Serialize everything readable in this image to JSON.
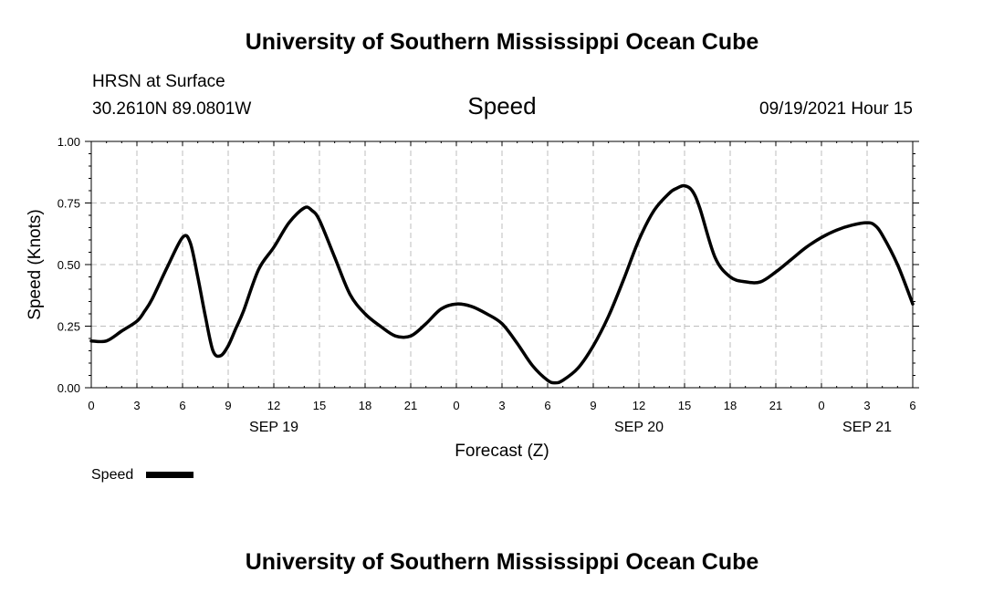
{
  "header": {
    "title": "University of Southern Mississippi Ocean Cube",
    "station": "HRSN at Surface",
    "coords": "30.2610N  89.0801W",
    "variable": "Speed",
    "datetime": "09/19/2021 Hour 15"
  },
  "footer": {
    "title": "University of Southern Mississippi Ocean Cube"
  },
  "legend": {
    "label": "Speed"
  },
  "chart_data": {
    "type": "line",
    "title": "Speed",
    "xlabel": "Forecast (Z)",
    "ylabel": "Speed (Knots)",
    "xlim": [
      0,
      54
    ],
    "ylim": [
      0,
      1
    ],
    "grid": true,
    "legend_position": "bottom-left",
    "x_ticks": [
      0,
      3,
      6,
      9,
      12,
      15,
      18,
      21,
      24,
      27,
      30,
      33,
      36,
      39,
      42,
      45,
      48,
      51,
      54
    ],
    "x_tick_labels": [
      "0",
      "3",
      "6",
      "9",
      "12",
      "15",
      "18",
      "21",
      "0",
      "3",
      "6",
      "9",
      "12",
      "15",
      "18",
      "21",
      "0",
      "3",
      "6"
    ],
    "y_ticks": [
      0,
      0.25,
      0.5,
      0.75,
      1.0
    ],
    "y_tick_labels": [
      "0.00",
      "0.25",
      "0.50",
      "0.75",
      "1.00"
    ],
    "date_labels": [
      {
        "label": "SEP 19",
        "x": 12
      },
      {
        "label": "SEP 20",
        "x": 36
      },
      {
        "label": "SEP 21",
        "x": 51
      }
    ],
    "series": [
      {
        "name": "Speed",
        "x": [
          0,
          1,
          2,
          3,
          3.5,
          4,
          5,
          6,
          6.5,
          7,
          7.5,
          8,
          8.5,
          9,
          9.5,
          10,
          11,
          12,
          13,
          14,
          14.5,
          15,
          16,
          17,
          18,
          19,
          20,
          21,
          22,
          23,
          24,
          25,
          26,
          27,
          28,
          29,
          30,
          30.5,
          31,
          32,
          33,
          34,
          35,
          36,
          37,
          38,
          38.5,
          39,
          39.5,
          40,
          41,
          42,
          43,
          44,
          45,
          46,
          47,
          48,
          49,
          50,
          51,
          51.5,
          52,
          53,
          54
        ],
        "y": [
          0.19,
          0.19,
          0.23,
          0.27,
          0.31,
          0.36,
          0.49,
          0.61,
          0.59,
          0.45,
          0.29,
          0.15,
          0.13,
          0.17,
          0.24,
          0.31,
          0.48,
          0.57,
          0.67,
          0.73,
          0.72,
          0.68,
          0.53,
          0.38,
          0.3,
          0.25,
          0.21,
          0.21,
          0.26,
          0.32,
          0.34,
          0.33,
          0.3,
          0.26,
          0.18,
          0.09,
          0.03,
          0.02,
          0.03,
          0.08,
          0.17,
          0.29,
          0.44,
          0.6,
          0.72,
          0.79,
          0.81,
          0.82,
          0.8,
          0.73,
          0.53,
          0.45,
          0.43,
          0.43,
          0.47,
          0.52,
          0.57,
          0.61,
          0.64,
          0.66,
          0.67,
          0.66,
          0.62,
          0.5,
          0.34
        ]
      }
    ]
  }
}
